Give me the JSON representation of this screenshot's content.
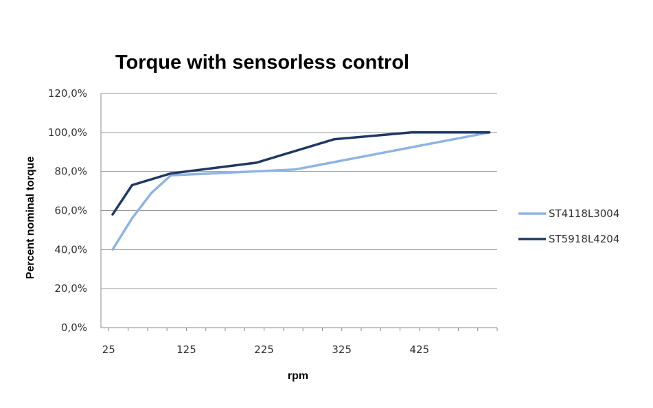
{
  "chart_data": {
    "type": "line",
    "title": "Torque with sensorless control",
    "xlabel": "rpm",
    "ylabel": "Percent nominal torque",
    "x_ticks": [
      "25",
      "125",
      "225",
      "325",
      "425"
    ],
    "y_ticks": [
      "0,0%",
      "20,0%",
      "40,0%",
      "60,0%",
      "80,0%",
      "100,0%",
      "120,0%"
    ],
    "xlim": [
      15,
      525
    ],
    "ylim": [
      0,
      120
    ],
    "grid": true,
    "legend": "right",
    "series": [
      {
        "name": "ST4118L3004",
        "color": "#8eb4e3",
        "x": [
          30,
          55,
          80,
          105,
          265,
          515
        ],
        "y": [
          40,
          56,
          69,
          78,
          81,
          100
        ]
      },
      {
        "name": "ST5918L4204",
        "color": "#1f3864",
        "x": [
          30,
          55,
          105,
          215,
          315,
          415,
          515
        ],
        "y": [
          58,
          73,
          79,
          84.5,
          96.5,
          100,
          100
        ]
      }
    ]
  }
}
